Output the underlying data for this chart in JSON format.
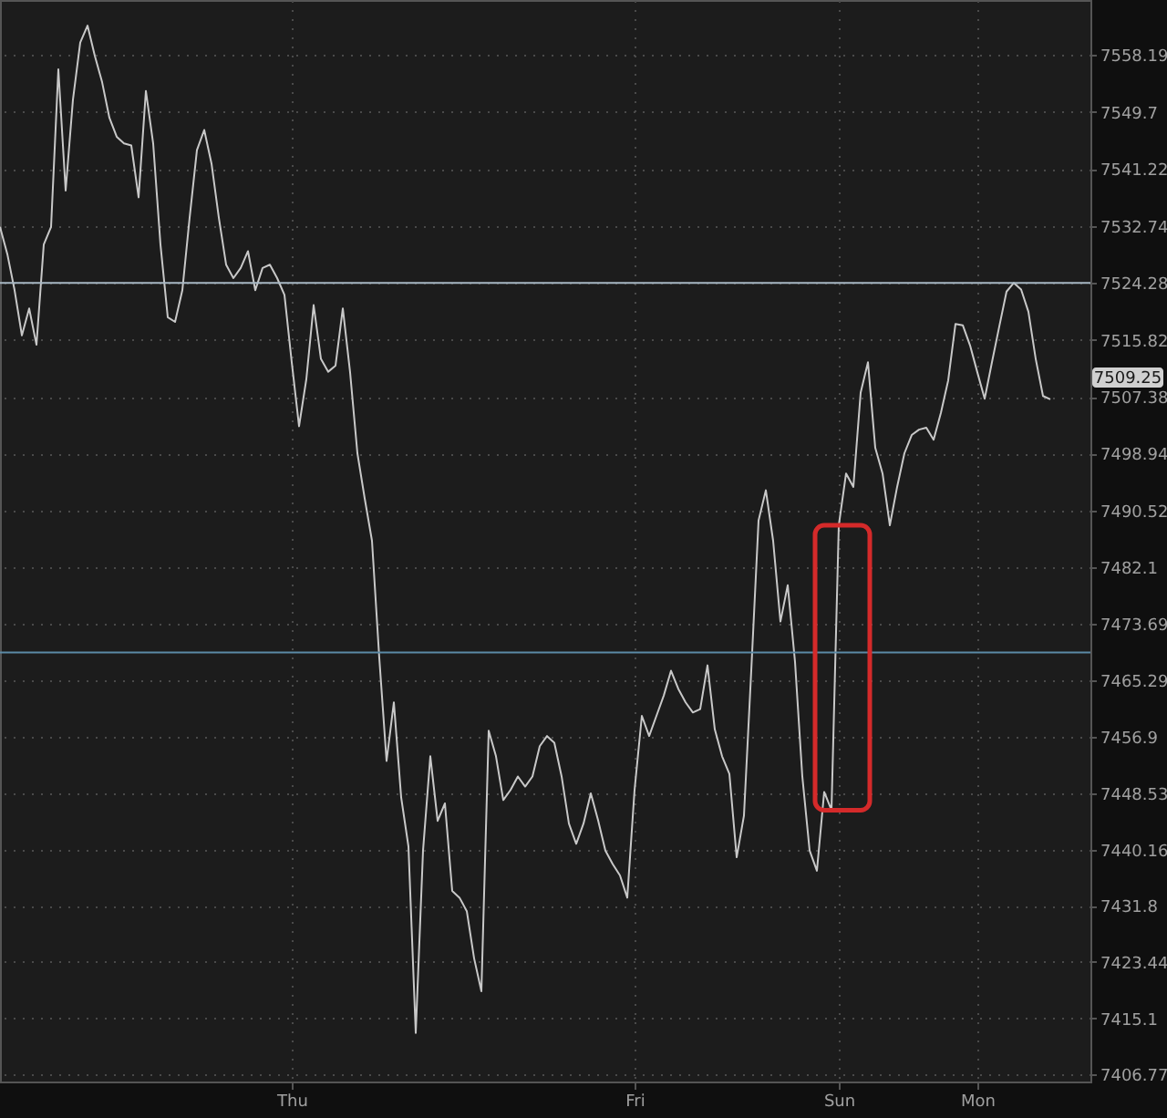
{
  "chart_data": {
    "type": "line",
    "categories": [
      null,
      null,
      null,
      null,
      null,
      null,
      null,
      null,
      null,
      null,
      null,
      null,
      null,
      null,
      null,
      null,
      null,
      null,
      null,
      null,
      null,
      null,
      null,
      null,
      null,
      null,
      null,
      null,
      null,
      null,
      null,
      null,
      null,
      null,
      null,
      null,
      null,
      null,
      null,
      null,
      "Thu",
      null,
      null,
      null,
      null,
      null,
      null,
      null,
      null,
      null,
      null,
      null,
      null,
      null,
      null,
      null,
      null,
      null,
      null,
      null,
      null,
      null,
      null,
      null,
      null,
      null,
      null,
      null,
      null,
      null,
      null,
      null,
      null,
      null,
      null,
      null,
      null,
      null,
      null,
      null,
      null,
      null,
      null,
      null,
      null,
      null,
      null,
      "Fri",
      null,
      null,
      null,
      null,
      null,
      null,
      null,
      null,
      null,
      null,
      null,
      null,
      null,
      null,
      null,
      null,
      null,
      null,
      null,
      null,
      null,
      null,
      null,
      null,
      null,
      null,
      null,
      "Sun",
      null,
      null,
      null,
      null,
      null,
      null,
      null,
      null,
      null,
      null,
      null,
      null,
      null,
      null,
      null,
      null,
      null,
      null,
      "Mon",
      null,
      null,
      null,
      null,
      null,
      null,
      null,
      null,
      null,
      null,
      null,
      null,
      null,
      null,
      null
    ],
    "series": [
      {
        "color": "#c8c8c8",
        "values": [
          7532.6,
          7528.6,
          7523.2,
          7516.5,
          7520.5,
          7515.1,
          7530.0,
          7532.6,
          7556.0,
          7538.0,
          7551.5,
          7560.0,
          7562.5,
          7558.0,
          7554.1,
          7548.8,
          7546.0,
          7545.0,
          7544.7,
          7537.0,
          7552.8,
          7545.0,
          7530.0,
          7519.2,
          7518.5,
          7523.2,
          7534.0,
          7544.0,
          7547.0,
          7542.0,
          7534.0,
          7527.0,
          7525.0,
          7526.5,
          7529.0,
          7523.2,
          7526.5,
          7527.0,
          7525.0,
          7522.5,
          7512.5,
          7503.0,
          7510.0,
          7521.0,
          7513.0,
          7511.1,
          7512.0,
          7520.5,
          7511.0,
          7499.0,
          7492.3,
          7486.0,
          7468.6,
          7453.3,
          7462.0,
          7447.9,
          7440.6,
          7412.9,
          7440.0,
          7454.0,
          7444.4,
          7447.0,
          7434.0,
          7433.0,
          7431.0,
          7424.0,
          7419.1,
          7457.8,
          7454.0,
          7447.5,
          7449.0,
          7451.0,
          7449.5,
          7451.0,
          7455.5,
          7457.0,
          7456.0,
          7451.0,
          7444.0,
          7441.0,
          7444.0,
          7448.5,
          7444.5,
          7440.0,
          7438.0,
          7436.3,
          7433.0,
          7449.0,
          7460.0,
          7457.0,
          7460.0,
          7463.0,
          7466.7,
          7464.0,
          7462.0,
          7460.5,
          7461.0,
          7467.5,
          7458.0,
          7454.0,
          7451.4,
          7439.0,
          7445.2,
          7466.7,
          7489.0,
          7493.5,
          7486.0,
          7474.0,
          7479.4,
          7468.0,
          7451.0,
          7440.0,
          7437.0,
          7448.7,
          7446.0,
          7488.3,
          7496.0,
          7494.0,
          7508.0,
          7512.5,
          7499.8,
          7496.0,
          7488.3,
          7494.0,
          7499.0,
          7501.7,
          7502.5,
          7502.8,
          7501.0,
          7505.0,
          7509.8,
          7518.2,
          7518.0,
          7515.0,
          7511.0,
          7507.1,
          7512.5,
          7517.8,
          7523.0,
          7524.3,
          7523.3,
          7520.0,
          7513.0,
          7507.5,
          7507.0,
          null,
          null,
          null,
          null,
          null
        ]
      }
    ],
    "ylim": [
      7405.7,
      7566.3
    ],
    "yticks": [
      7406.77,
      7415.1,
      7423.44,
      7431.8,
      7440.16,
      7448.53,
      7456.9,
      7465.29,
      7473.69,
      7482.1,
      7490.52,
      7498.94,
      7507.38,
      7515.82,
      7524.28,
      7532.74,
      7541.22,
      7549.7,
      7558.19
    ],
    "grid": true,
    "ref_lines": [
      {
        "axis": "y",
        "value": 7524.28,
        "color": "#a7b7c3"
      },
      {
        "axis": "y",
        "value": 7469.4,
        "color": "#5b8aa6"
      }
    ],
    "annotations": [
      "7509.25"
    ]
  }
}
